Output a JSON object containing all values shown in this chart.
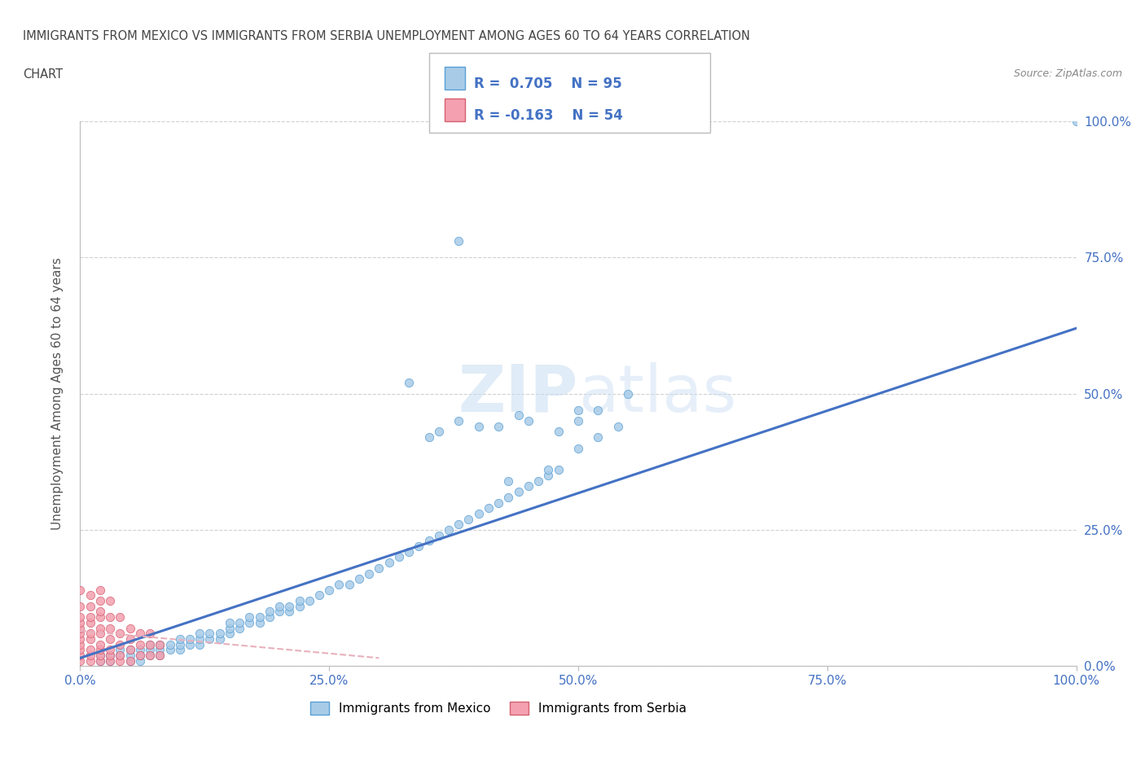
{
  "title_line1": "IMMIGRANTS FROM MEXICO VS IMMIGRANTS FROM SERBIA UNEMPLOYMENT AMONG AGES 60 TO 64 YEARS CORRELATION",
  "title_line2": "CHART",
  "source": "Source: ZipAtlas.com",
  "ylabel": "Unemployment Among Ages 60 to 64 years",
  "xlim": [
    0.0,
    1.0
  ],
  "ylim": [
    0.0,
    1.0
  ],
  "xticks": [
    0.0,
    0.25,
    0.5,
    0.75,
    1.0
  ],
  "xticklabels": [
    "0.0%",
    "25.0%",
    "50.0%",
    "75.0%",
    "100.0%"
  ],
  "ytick_positions": [
    0.0,
    0.25,
    0.5,
    0.75,
    1.0
  ],
  "right_yticklabels": [
    "0.0%",
    "25.0%",
    "50.0%",
    "75.0%",
    "100.0%"
  ],
  "mexico_color": "#a8cce8",
  "mexico_edge_color": "#5a9fd4",
  "serbia_color": "#f4a0b0",
  "serbia_edge_color": "#d46070",
  "mexico_line_color": "#4472c4",
  "serbia_line_color": "#e8b0bc",
  "watermark_text": "ZIPatlas",
  "mexico_scatter_x": [
    0.02,
    0.02,
    0.03,
    0.03,
    0.04,
    0.04,
    0.05,
    0.05,
    0.05,
    0.06,
    0.06,
    0.06,
    0.07,
    0.07,
    0.07,
    0.08,
    0.08,
    0.08,
    0.09,
    0.09,
    0.1,
    0.1,
    0.1,
    0.11,
    0.11,
    0.12,
    0.12,
    0.12,
    0.13,
    0.13,
    0.14,
    0.14,
    0.15,
    0.15,
    0.15,
    0.16,
    0.16,
    0.17,
    0.17,
    0.18,
    0.18,
    0.19,
    0.19,
    0.2,
    0.2,
    0.21,
    0.21,
    0.22,
    0.22,
    0.23,
    0.24,
    0.25,
    0.26,
    0.27,
    0.28,
    0.29,
    0.3,
    0.31,
    0.32,
    0.33,
    0.34,
    0.35,
    0.36,
    0.37,
    0.38,
    0.39,
    0.4,
    0.41,
    0.42,
    0.43,
    0.44,
    0.45,
    0.46,
    0.47,
    0.48,
    0.5,
    0.52,
    0.54,
    0.35,
    0.4,
    0.45,
    0.5,
    0.55,
    0.36,
    0.38,
    0.42,
    0.44,
    0.48,
    0.5,
    0.52,
    0.47,
    0.43,
    0.38,
    0.33,
    1.0
  ],
  "mexico_scatter_y": [
    0.01,
    0.02,
    0.01,
    0.02,
    0.02,
    0.03,
    0.01,
    0.02,
    0.03,
    0.01,
    0.02,
    0.03,
    0.02,
    0.03,
    0.04,
    0.02,
    0.03,
    0.04,
    0.03,
    0.04,
    0.03,
    0.04,
    0.05,
    0.04,
    0.05,
    0.04,
    0.05,
    0.06,
    0.05,
    0.06,
    0.05,
    0.06,
    0.06,
    0.07,
    0.08,
    0.07,
    0.08,
    0.08,
    0.09,
    0.08,
    0.09,
    0.09,
    0.1,
    0.1,
    0.11,
    0.1,
    0.11,
    0.11,
    0.12,
    0.12,
    0.13,
    0.14,
    0.15,
    0.15,
    0.16,
    0.17,
    0.18,
    0.19,
    0.2,
    0.21,
    0.22,
    0.23,
    0.24,
    0.25,
    0.26,
    0.27,
    0.28,
    0.29,
    0.3,
    0.31,
    0.32,
    0.33,
    0.34,
    0.35,
    0.36,
    0.4,
    0.42,
    0.44,
    0.42,
    0.44,
    0.45,
    0.47,
    0.5,
    0.43,
    0.45,
    0.44,
    0.46,
    0.43,
    0.45,
    0.47,
    0.36,
    0.34,
    0.78,
    0.52,
    1.0
  ],
  "serbia_scatter_x": [
    0.0,
    0.0,
    0.0,
    0.0,
    0.0,
    0.0,
    0.0,
    0.0,
    0.0,
    0.0,
    0.0,
    0.01,
    0.01,
    0.01,
    0.01,
    0.01,
    0.01,
    0.01,
    0.01,
    0.01,
    0.02,
    0.02,
    0.02,
    0.02,
    0.02,
    0.02,
    0.02,
    0.02,
    0.02,
    0.02,
    0.03,
    0.03,
    0.03,
    0.03,
    0.03,
    0.03,
    0.03,
    0.04,
    0.04,
    0.04,
    0.04,
    0.04,
    0.05,
    0.05,
    0.05,
    0.05,
    0.06,
    0.06,
    0.06,
    0.07,
    0.07,
    0.07,
    0.08,
    0.08
  ],
  "serbia_scatter_y": [
    0.01,
    0.02,
    0.03,
    0.04,
    0.05,
    0.06,
    0.07,
    0.08,
    0.09,
    0.11,
    0.14,
    0.01,
    0.02,
    0.03,
    0.05,
    0.06,
    0.08,
    0.09,
    0.11,
    0.13,
    0.01,
    0.02,
    0.03,
    0.04,
    0.06,
    0.07,
    0.09,
    0.1,
    0.12,
    0.14,
    0.01,
    0.02,
    0.03,
    0.05,
    0.07,
    0.09,
    0.12,
    0.01,
    0.02,
    0.04,
    0.06,
    0.09,
    0.01,
    0.03,
    0.05,
    0.07,
    0.02,
    0.04,
    0.06,
    0.02,
    0.04,
    0.06,
    0.02,
    0.04
  ],
  "mexico_trendline_x": [
    0.0,
    1.0
  ],
  "mexico_trendline_y": [
    0.015,
    0.62
  ],
  "serbia_trendline_x": [
    0.0,
    0.3
  ],
  "serbia_trendline_y": [
    0.065,
    0.015
  ],
  "grid_color": "#cccccc",
  "bg_color": "#ffffff",
  "tick_color": "#4472c4"
}
